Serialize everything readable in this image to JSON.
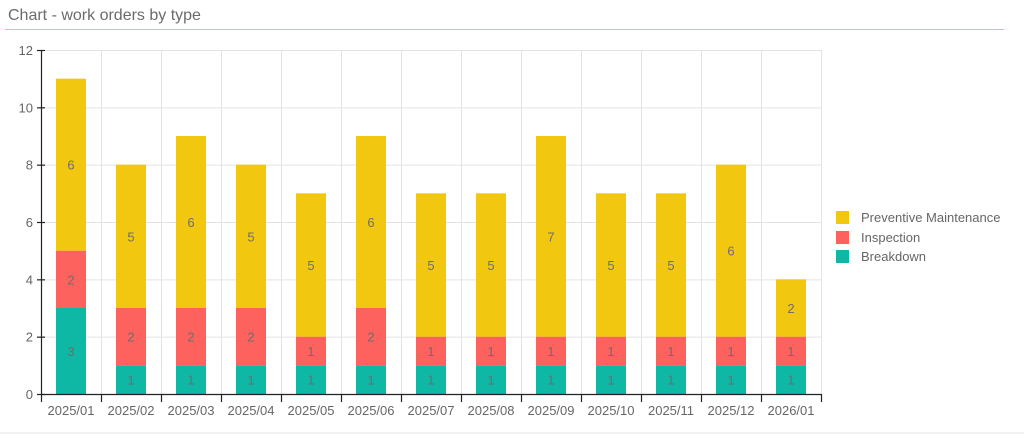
{
  "header": {
    "title": "Chart - work orders by type"
  },
  "colors": {
    "preventive": "#f1c70f",
    "inspection": "#fd625e",
    "breakdown": "#0fb7a5",
    "accent_rule": "#8fdcc8",
    "grid": "#e3e3e3",
    "axis": "#222222"
  },
  "legend": {
    "items": [
      {
        "label": "Preventive Maintenance",
        "color": "#f1c70f"
      },
      {
        "label": "Inspection",
        "color": "#fd625e"
      },
      {
        "label": "Breakdown",
        "color": "#0fb7a5"
      }
    ]
  },
  "chart_data": {
    "type": "bar",
    "stacked": true,
    "title": "Chart - work orders by type",
    "xlabel": "",
    "ylabel": "",
    "ylim": [
      0,
      12
    ],
    "yticks": [
      0,
      2,
      4,
      6,
      8,
      10,
      12
    ],
    "grid": true,
    "legend_position": "right",
    "categories": [
      "2025/01",
      "2025/02",
      "2025/03",
      "2025/04",
      "2025/05",
      "2025/06",
      "2025/07",
      "2025/08",
      "2025/09",
      "2025/10",
      "2025/11",
      "2025/12",
      "2026/01"
    ],
    "series": [
      {
        "name": "Breakdown",
        "color": "#0fb7a5",
        "values": [
          3,
          1,
          1,
          1,
          1,
          1,
          1,
          1,
          1,
          1,
          1,
          1,
          1
        ]
      },
      {
        "name": "Inspection",
        "color": "#fd625e",
        "values": [
          2,
          2,
          2,
          2,
          1,
          2,
          1,
          1,
          1,
          1,
          1,
          1,
          1
        ]
      },
      {
        "name": "Preventive Maintenance",
        "color": "#f1c70f",
        "values": [
          6,
          5,
          6,
          5,
          5,
          6,
          5,
          5,
          7,
          5,
          5,
          6,
          2
        ]
      }
    ],
    "totals": [
      11,
      8,
      9,
      8,
      7,
      9,
      7,
      7,
      9,
      7,
      7,
      8,
      4
    ]
  }
}
